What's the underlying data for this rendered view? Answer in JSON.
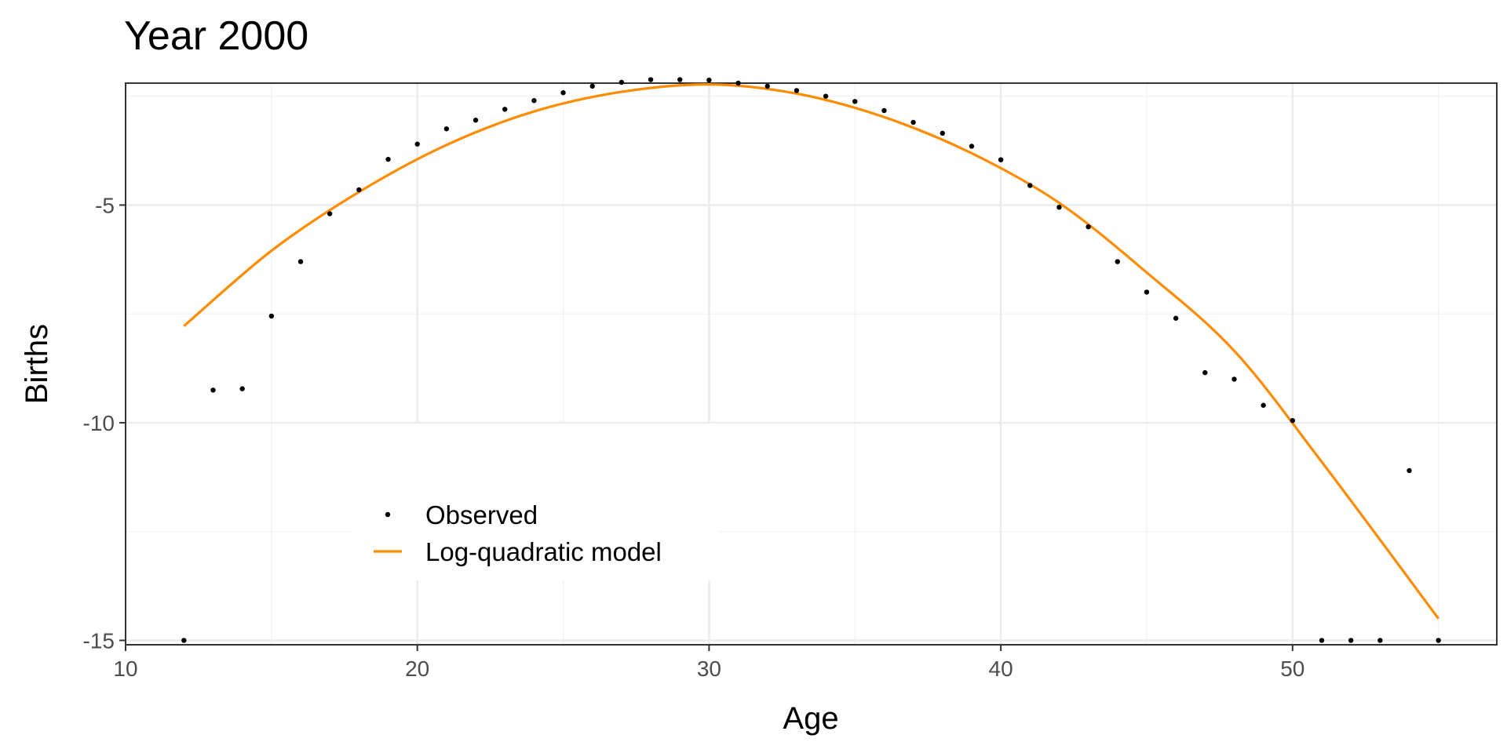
{
  "chart_data": {
    "type": "scatter",
    "title": "Year 2000",
    "xlabel": "Age",
    "ylabel": "Births",
    "xlim": [
      10,
      57
    ],
    "ylim": [
      -15.1,
      -2.2
    ],
    "x_ticks": [
      10,
      20,
      30,
      40,
      50
    ],
    "y_ticks": [
      -5,
      -10,
      -15
    ],
    "x_tick_labels": [
      "10",
      "20",
      "30",
      "40",
      "50"
    ],
    "y_tick_labels": [
      "-5",
      "-10",
      "-15"
    ],
    "grid": true,
    "legend_position": "bottom-left inside",
    "series": [
      {
        "name": "Observed",
        "kind": "points",
        "color": "#000000",
        "x": [
          12,
          13,
          14,
          15,
          16,
          17,
          18,
          19,
          20,
          21,
          22,
          23,
          24,
          25,
          26,
          27,
          28,
          29,
          30,
          31,
          32,
          33,
          34,
          35,
          36,
          37,
          38,
          39,
          40,
          41,
          42,
          43,
          44,
          45,
          46,
          47,
          48,
          49,
          50,
          51,
          52,
          53,
          54,
          55
        ],
        "y": [
          -15.0,
          -9.25,
          -9.22,
          -7.55,
          -6.3,
          -5.2,
          -4.65,
          -3.95,
          -3.6,
          -3.25,
          -3.05,
          -2.8,
          -2.6,
          -2.42,
          -2.27,
          -2.18,
          -2.12,
          -2.12,
          -2.13,
          -2.2,
          -2.27,
          -2.37,
          -2.5,
          -2.62,
          -2.83,
          -3.1,
          -3.35,
          -3.65,
          -3.96,
          -4.55,
          -5.05,
          -5.5,
          -6.3,
          -7.0,
          -7.6,
          -8.85,
          -9.0,
          -9.6,
          -9.95,
          -15.0,
          -15.0,
          -15.0,
          -11.1,
          -15.0
        ]
      },
      {
        "name": "Log-quadratic model",
        "kind": "line",
        "color": "#FF8C00",
        "x": [
          12,
          15,
          18,
          21,
          24,
          27,
          30,
          33,
          36,
          39,
          42,
          45,
          48,
          51,
          55
        ],
        "y": [
          -7.78,
          -6.05,
          -4.7,
          -3.62,
          -2.85,
          -2.4,
          -2.23,
          -2.44,
          -2.98,
          -3.81,
          -4.95,
          -6.55,
          -8.35,
          -10.9,
          -14.5
        ]
      }
    ]
  }
}
